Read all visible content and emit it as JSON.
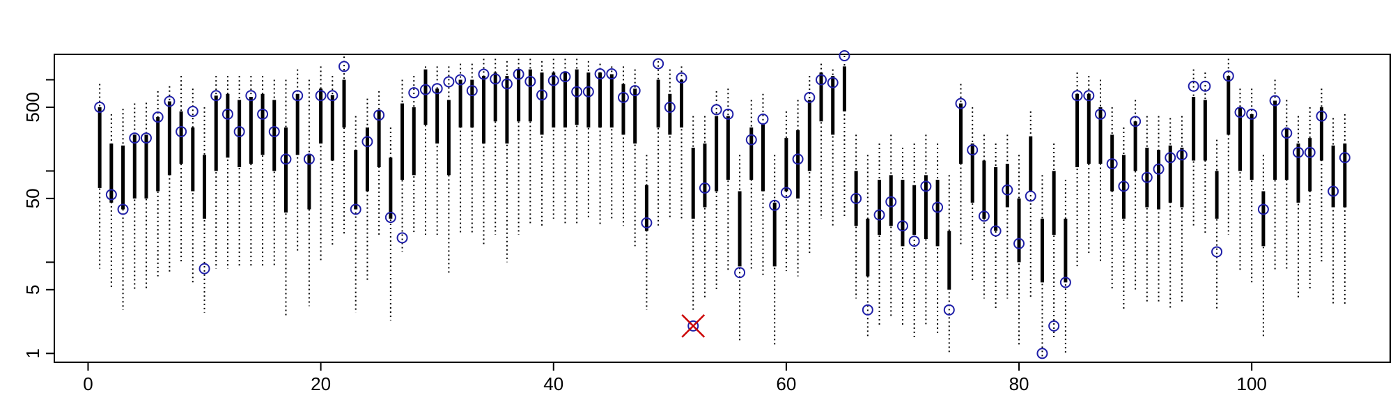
{
  "chart_data": {
    "type": "scatter",
    "title": "",
    "xlabel": "",
    "ylabel": "",
    "x_ticks": [
      0,
      20,
      40,
      60,
      80,
      100
    ],
    "x_tick_labels": [
      "0",
      "20",
      "40",
      "60",
      "80",
      "100"
    ],
    "y_ticks": [
      1,
      5,
      50,
      500
    ],
    "y_tick_labels": [
      "1",
      "5",
      "50",
      "500"
    ],
    "xlim": [
      -2.9,
      111.9
    ],
    "ylim": [
      0.8,
      1900
    ],
    "y_log": true,
    "colors": {
      "point": "#1f1fa8",
      "outlier": "#cc0000",
      "bar": "#000000"
    },
    "series": [
      {
        "name": "",
        "x": 1,
        "y": 500,
        "q1": 65,
        "q3": 500,
        "lo": 8.5,
        "hi": 900
      },
      {
        "name": "",
        "x": 2,
        "y": 55,
        "q1": 45,
        "q3": 200,
        "lo": 5,
        "hi": 420
      },
      {
        "name": "",
        "x": 3,
        "y": 38,
        "q1": 38,
        "q3": 190,
        "lo": 3,
        "hi": 480
      },
      {
        "name": "",
        "x": 4,
        "y": 230,
        "q1": 50,
        "q3": 250,
        "lo": 5,
        "hi": 550
      },
      {
        "name": "",
        "x": 5,
        "y": 230,
        "q1": 50,
        "q3": 250,
        "lo": 5,
        "hi": 560
      },
      {
        "name": "",
        "x": 6,
        "y": 390,
        "q1": 60,
        "q3": 390,
        "lo": 7,
        "hi": 750
      },
      {
        "name": "",
        "x": 7,
        "y": 580,
        "q1": 90,
        "q3": 580,
        "lo": 7.5,
        "hi": 850
      },
      {
        "name": "",
        "x": 8,
        "y": 270,
        "q1": 120,
        "q3": 450,
        "lo": 10,
        "hi": 1100
      },
      {
        "name": "",
        "x": 9,
        "y": 450,
        "q1": 60,
        "q3": 300,
        "lo": 6,
        "hi": 800
      },
      {
        "name": "",
        "x": 10,
        "y": 8.5,
        "q1": 30,
        "q3": 150,
        "lo": 2.8,
        "hi": 500
      },
      {
        "name": "",
        "x": 11,
        "y": 670,
        "q1": 100,
        "q3": 670,
        "lo": 8.5,
        "hi": 1100
      },
      {
        "name": "",
        "x": 12,
        "y": 420,
        "q1": 140,
        "q3": 700,
        "lo": 8.5,
        "hi": 1100
      },
      {
        "name": "",
        "x": 13,
        "y": 270,
        "q1": 110,
        "q3": 600,
        "lo": 9,
        "hi": 1100
      },
      {
        "name": "",
        "x": 14,
        "y": 670,
        "q1": 120,
        "q3": 650,
        "lo": 9,
        "hi": 1100
      },
      {
        "name": "",
        "x": 15,
        "y": 420,
        "q1": 150,
        "q3": 700,
        "lo": 9,
        "hi": 1100
      },
      {
        "name": "",
        "x": 16,
        "y": 270,
        "q1": 100,
        "q3": 600,
        "lo": 9,
        "hi": 1000
      },
      {
        "name": "",
        "x": 17,
        "y": 135,
        "q1": 35,
        "q3": 300,
        "lo": 2.6,
        "hi": 1000
      },
      {
        "name": "",
        "x": 18,
        "y": 670,
        "q1": 150,
        "q3": 700,
        "lo": 13,
        "hi": 1300
      },
      {
        "name": "",
        "x": 19,
        "y": 135,
        "q1": 38,
        "q3": 150,
        "lo": 3.3,
        "hi": 1000
      },
      {
        "name": "",
        "x": 20,
        "y": 670,
        "q1": 200,
        "q3": 800,
        "lo": 10,
        "hi": 1400
      },
      {
        "name": "",
        "x": 21,
        "y": 670,
        "q1": 130,
        "q3": 680,
        "lo": 15,
        "hi": 1100
      },
      {
        "name": "",
        "x": 22,
        "y": 1400,
        "q1": 300,
        "q3": 1000,
        "lo": 20,
        "hi": 1800
      },
      {
        "name": "",
        "x": 23,
        "y": 38,
        "q1": 38,
        "q3": 170,
        "lo": 2.8,
        "hi": 400
      },
      {
        "name": "",
        "x": 24,
        "y": 210,
        "q1": 60,
        "q3": 300,
        "lo": 6,
        "hi": 620
      },
      {
        "name": "",
        "x": 25,
        "y": 410,
        "q1": 110,
        "q3": 460,
        "lo": 20,
        "hi": 750
      },
      {
        "name": "",
        "x": 26,
        "y": 31,
        "q1": 30,
        "q3": 140,
        "lo": 2.3,
        "hi": 300
      },
      {
        "name": "",
        "x": 27,
        "y": 18.5,
        "q1": 80,
        "q3": 550,
        "lo": 13,
        "hi": 1000
      },
      {
        "name": "",
        "x": 28,
        "y": 720,
        "q1": 90,
        "q3": 500,
        "lo": 20,
        "hi": 1100
      },
      {
        "name": "",
        "x": 29,
        "y": 780,
        "q1": 320,
        "q3": 1300,
        "lo": 20,
        "hi": 1400
      },
      {
        "name": "",
        "x": 30,
        "y": 800,
        "q1": 200,
        "q3": 800,
        "lo": 20,
        "hi": 1400
      },
      {
        "name": "",
        "x": 31,
        "y": 950,
        "q1": 90,
        "q3": 600,
        "lo": 7.5,
        "hi": 1400
      },
      {
        "name": "",
        "x": 32,
        "y": 1000,
        "q1": 300,
        "q3": 1000,
        "lo": 20,
        "hi": 1500
      },
      {
        "name": "",
        "x": 33,
        "y": 760,
        "q1": 300,
        "q3": 1000,
        "lo": 20,
        "hi": 1500
      },
      {
        "name": "",
        "x": 34,
        "y": 1150,
        "q1": 200,
        "q3": 1100,
        "lo": 15,
        "hi": 1700
      },
      {
        "name": "",
        "x": 35,
        "y": 1020,
        "q1": 350,
        "q3": 1200,
        "lo": 20,
        "hi": 1700
      },
      {
        "name": "",
        "x": 36,
        "y": 900,
        "q1": 200,
        "q3": 1100,
        "lo": 10,
        "hi": 1600
      },
      {
        "name": "",
        "x": 37,
        "y": 1150,
        "q1": 350,
        "q3": 1300,
        "lo": 20,
        "hi": 1700
      },
      {
        "name": "",
        "x": 38,
        "y": 960,
        "q1": 350,
        "q3": 1300,
        "lo": 25,
        "hi": 1700
      },
      {
        "name": "",
        "x": 39,
        "y": 680,
        "q1": 250,
        "q3": 1200,
        "lo": 25,
        "hi": 1600
      },
      {
        "name": "",
        "x": 40,
        "y": 980,
        "q1": 300,
        "q3": 1200,
        "lo": 30,
        "hi": 1700
      },
      {
        "name": "",
        "x": 41,
        "y": 1080,
        "q1": 300,
        "q3": 1200,
        "lo": 25,
        "hi": 1700
      },
      {
        "name": "",
        "x": 42,
        "y": 740,
        "q1": 320,
        "q3": 1300,
        "lo": 25,
        "hi": 1700
      },
      {
        "name": "",
        "x": 43,
        "y": 740,
        "q1": 300,
        "q3": 1200,
        "lo": 30,
        "hi": 1600
      },
      {
        "name": "",
        "x": 44,
        "y": 1160,
        "q1": 300,
        "q3": 1200,
        "lo": 25,
        "hi": 1500
      },
      {
        "name": "",
        "x": 45,
        "y": 1160,
        "q1": 300,
        "q3": 1150,
        "lo": 30,
        "hi": 1400
      },
      {
        "name": "",
        "x": 46,
        "y": 640,
        "q1": 250,
        "q3": 900,
        "lo": 25,
        "hi": 1400
      },
      {
        "name": "",
        "x": 47,
        "y": 760,
        "q1": 200,
        "q3": 800,
        "lo": 15,
        "hi": 1300
      },
      {
        "name": "",
        "x": 48,
        "y": 27,
        "q1": 22,
        "q3": 70,
        "lo": 3,
        "hi": 150
      },
      {
        "name": "",
        "x": 49,
        "y": 1500,
        "q1": 300,
        "q3": 1000,
        "lo": 25,
        "hi": 1600
      },
      {
        "name": "",
        "x": 50,
        "y": 500,
        "q1": 250,
        "q3": 700,
        "lo": 30,
        "hi": 1300
      },
      {
        "name": "",
        "x": 51,
        "y": 1050,
        "q1": 300,
        "q3": 1000,
        "lo": 30,
        "hi": 1400
      },
      {
        "name": "",
        "x": 52,
        "y": 2,
        "q1": 30,
        "q3": 180,
        "lo": 3,
        "hi": 400
      },
      {
        "name": "",
        "x": 53,
        "y": 65,
        "q1": 40,
        "q3": 200,
        "lo": 4,
        "hi": 400
      },
      {
        "name": "",
        "x": 54,
        "y": 470,
        "q1": 60,
        "q3": 400,
        "lo": 5,
        "hi": 750
      },
      {
        "name": "",
        "x": 55,
        "y": 420,
        "q1": 80,
        "q3": 400,
        "lo": 8,
        "hi": 800
      },
      {
        "name": "",
        "x": 56,
        "y": 7.7,
        "q1": 9,
        "q3": 60,
        "lo": 1.3,
        "hi": 150
      },
      {
        "name": "",
        "x": 57,
        "y": 220,
        "q1": 80,
        "q3": 300,
        "lo": 8,
        "hi": 600
      },
      {
        "name": "",
        "x": 58,
        "y": 370,
        "q1": 60,
        "q3": 330,
        "lo": 7,
        "hi": 700
      },
      {
        "name": "",
        "x": 59,
        "y": 42,
        "q1": 9,
        "q3": 45,
        "lo": 1.2,
        "hi": 150
      },
      {
        "name": "",
        "x": 60,
        "y": 58,
        "q1": 60,
        "q3": 230,
        "lo": 8,
        "hi": 450
      },
      {
        "name": "",
        "x": 61,
        "y": 135,
        "q1": 50,
        "q3": 280,
        "lo": 7,
        "hi": 600
      },
      {
        "name": "",
        "x": 62,
        "y": 640,
        "q1": 100,
        "q3": 600,
        "lo": 12,
        "hi": 1100
      },
      {
        "name": "",
        "x": 63,
        "y": 1000,
        "q1": 350,
        "q3": 1200,
        "lo": 30,
        "hi": 1500
      },
      {
        "name": "",
        "x": 64,
        "y": 930,
        "q1": 250,
        "q3": 1100,
        "lo": 25,
        "hi": 1300
      },
      {
        "name": "",
        "x": 65,
        "y": 2200,
        "q1": 450,
        "q3": 1400,
        "lo": 30,
        "hi": 2000
      },
      {
        "name": "",
        "x": 66,
        "y": 50,
        "q1": 25,
        "q3": 100,
        "lo": 4,
        "hi": 250
      },
      {
        "name": "",
        "x": 67,
        "y": 3,
        "q1": 7,
        "q3": 30,
        "lo": 1.5,
        "hi": 150
      },
      {
        "name": "",
        "x": 68,
        "y": 33,
        "q1": 20,
        "q3": 80,
        "lo": 2,
        "hi": 200
      },
      {
        "name": "",
        "x": 69,
        "y": 46,
        "q1": 25,
        "q3": 90,
        "lo": 2.5,
        "hi": 250
      },
      {
        "name": "",
        "x": 70,
        "y": 25,
        "q1": 15,
        "q3": 80,
        "lo": 2,
        "hi": 180
      },
      {
        "name": "",
        "x": 71,
        "y": 17,
        "q1": 20,
        "q3": 70,
        "lo": 1.5,
        "hi": 200
      },
      {
        "name": "",
        "x": 72,
        "y": 68,
        "q1": 18,
        "q3": 90,
        "lo": 2,
        "hi": 250
      },
      {
        "name": "",
        "x": 73,
        "y": 40,
        "q1": 15,
        "q3": 80,
        "lo": 1.6,
        "hi": 200
      },
      {
        "name": "",
        "x": 74,
        "y": 3,
        "q1": 5,
        "q3": 22,
        "lo": 1,
        "hi": 90
      },
      {
        "name": "",
        "x": 75,
        "y": 550,
        "q1": 120,
        "q3": 550,
        "lo": 15,
        "hi": 900
      },
      {
        "name": "",
        "x": 76,
        "y": 170,
        "q1": 45,
        "q3": 200,
        "lo": 6,
        "hi": 500
      },
      {
        "name": "",
        "x": 77,
        "y": 32,
        "q1": 30,
        "q3": 130,
        "lo": 4,
        "hi": 250
      },
      {
        "name": "",
        "x": 78,
        "y": 22,
        "q1": 22,
        "q3": 110,
        "lo": 3,
        "hi": 200
      },
      {
        "name": "",
        "x": 79,
        "y": 62,
        "q1": 40,
        "q3": 120,
        "lo": 4,
        "hi": 250
      },
      {
        "name": "",
        "x": 80,
        "y": 16,
        "q1": 10,
        "q3": 50,
        "lo": 1.2,
        "hi": 150
      },
      {
        "name": "",
        "x": 81,
        "y": 53,
        "q1": 60,
        "q3": 240,
        "lo": 4,
        "hi": 450
      },
      {
        "name": "",
        "x": 82,
        "y": 1,
        "q1": 6,
        "q3": 30,
        "lo": 0.9,
        "hi": 90
      },
      {
        "name": "",
        "x": 83,
        "y": 2,
        "q1": 20,
        "q3": 100,
        "lo": 1.5,
        "hi": 200
      },
      {
        "name": "",
        "x": 84,
        "y": 6,
        "q1": 6,
        "q3": 30,
        "lo": 1,
        "hi": 80
      },
      {
        "name": "",
        "x": 85,
        "y": 670,
        "q1": 110,
        "q3": 700,
        "lo": 9,
        "hi": 1200
      },
      {
        "name": "",
        "x": 86,
        "y": 670,
        "q1": 120,
        "q3": 700,
        "lo": 12,
        "hi": 1100
      },
      {
        "name": "",
        "x": 87,
        "y": 420,
        "q1": 120,
        "q3": 500,
        "lo": 10,
        "hi": 1000
      },
      {
        "name": "",
        "x": 88,
        "y": 120,
        "q1": 60,
        "q3": 250,
        "lo": 5,
        "hi": 500
      },
      {
        "name": "",
        "x": 89,
        "y": 68,
        "q1": 30,
        "q3": 150,
        "lo": 3,
        "hi": 300
      },
      {
        "name": "",
        "x": 90,
        "y": 350,
        "q1": 100,
        "q3": 350,
        "lo": 5,
        "hi": 600
      },
      {
        "name": "",
        "x": 91,
        "y": 85,
        "q1": 40,
        "q3": 180,
        "lo": 3.5,
        "hi": 400
      },
      {
        "name": "",
        "x": 92,
        "y": 105,
        "q1": 38,
        "q3": 170,
        "lo": 3.5,
        "hi": 400
      },
      {
        "name": "",
        "x": 93,
        "y": 140,
        "q1": 45,
        "q3": 190,
        "lo": 3,
        "hi": 380
      },
      {
        "name": "",
        "x": 94,
        "y": 150,
        "q1": 40,
        "q3": 180,
        "lo": 3.5,
        "hi": 400
      },
      {
        "name": "",
        "x": 95,
        "y": 850,
        "q1": 130,
        "q3": 650,
        "lo": 25,
        "hi": 1300
      },
      {
        "name": "",
        "x": 96,
        "y": 850,
        "q1": 130,
        "q3": 600,
        "lo": 20,
        "hi": 1200
      },
      {
        "name": "",
        "x": 97,
        "y": 13,
        "q1": 30,
        "q3": 100,
        "lo": 3,
        "hi": 220
      },
      {
        "name": "",
        "x": 98,
        "y": 1100,
        "q1": 250,
        "q3": 1100,
        "lo": 20,
        "hi": 1700
      },
      {
        "name": "",
        "x": 99,
        "y": 440,
        "q1": 100,
        "q3": 500,
        "lo": 8,
        "hi": 800
      },
      {
        "name": "",
        "x": 100,
        "y": 420,
        "q1": 80,
        "q3": 420,
        "lo": 6,
        "hi": 800
      },
      {
        "name": "",
        "x": 101,
        "y": 38,
        "q1": 15,
        "q3": 60,
        "lo": 1.5,
        "hi": 150
      },
      {
        "name": "",
        "x": 102,
        "y": 590,
        "q1": 80,
        "q3": 590,
        "lo": 8,
        "hi": 1000
      },
      {
        "name": "",
        "x": 103,
        "y": 260,
        "q1": 80,
        "q3": 300,
        "lo": 8,
        "hi": 600
      },
      {
        "name": "",
        "x": 104,
        "y": 160,
        "q1": 45,
        "q3": 200,
        "lo": 4,
        "hi": 400
      },
      {
        "name": "",
        "x": 105,
        "y": 160,
        "q1": 60,
        "q3": 230,
        "lo": 5,
        "hi": 500
      },
      {
        "name": "",
        "x": 106,
        "y": 400,
        "q1": 130,
        "q3": 500,
        "lo": 10,
        "hi": 800
      },
      {
        "name": "",
        "x": 107,
        "y": 60,
        "q1": 40,
        "q3": 190,
        "lo": 3.5,
        "hi": 380
      },
      {
        "name": "",
        "x": 108,
        "y": 140,
        "q1": 40,
        "q3": 200,
        "lo": 3.5,
        "hi": 420
      }
    ],
    "outliers": [
      52
    ],
    "grid": false,
    "legend": "none"
  }
}
